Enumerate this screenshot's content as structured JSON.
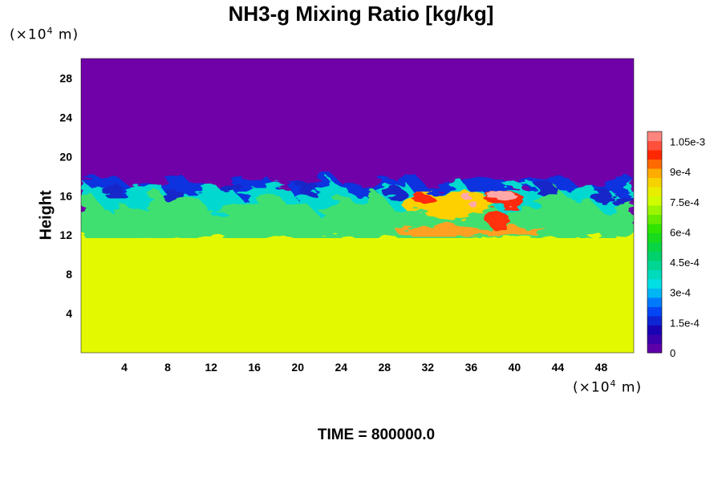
{
  "chart_data": {
    "type": "heatmap",
    "title": "NH3-g Mixing Ratio [kg/kg]",
    "ylabel": "Height",
    "xlabel": "",
    "x_unit": "(×10⁴ m)",
    "y_unit": "(×10⁴ m)",
    "unit_base": "(×10",
    "unit_exp": "4",
    "unit_tail": " m)",
    "time_label": "TIME = 800000.0",
    "xlim": [
      0,
      51
    ],
    "ylim": [
      0,
      30
    ],
    "x_ticks": [
      4,
      8,
      12,
      16,
      20,
      24,
      28,
      32,
      36,
      40,
      44,
      48
    ],
    "y_ticks": [
      4,
      8,
      12,
      16,
      20,
      24,
      28
    ],
    "colorbar": {
      "range": [
        0,
        0.0011
      ],
      "tick_values": [
        0,
        0.00015,
        0.0003,
        0.00045,
        0.0006,
        0.00075,
        0.0009,
        0.00105
      ],
      "tick_labels": [
        "0",
        "1.5e-4",
        "3e-4",
        "4.5e-4",
        "6e-4",
        "7.5e-4",
        "9e-4",
        "1.05e-3"
      ]
    },
    "regions": {
      "lower_value": 0.00078,
      "upper_value": 0,
      "interface_height": 17.5,
      "mixed_layer_bottom": 12.5
    }
  }
}
